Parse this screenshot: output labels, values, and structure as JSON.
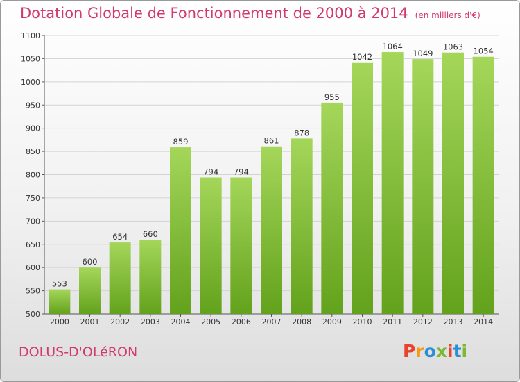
{
  "header": {
    "title": "Dotation Globale de Fonctionnement de 2000 à 2014",
    "unit": "(en milliers d'€)"
  },
  "footer": {
    "commune": "DOLUS-D'OLéRON",
    "logo_text": "Proxiti",
    "logo_colors": [
      "#e8432c",
      "#f39c12",
      "#2b8fd6",
      "#7cb82f",
      "#e8432c",
      "#2b8fd6",
      "#7cb82f"
    ]
  },
  "colors": {
    "bar_light": "#a4d65a",
    "bar_dark": "#63a21c",
    "grid": "#d3d3d3",
    "accent": "#d2396e"
  },
  "chart_data": {
    "type": "bar",
    "title": "Dotation Globale de Fonctionnement de 2000 à 2014",
    "subtitle": "(en milliers d'€)",
    "xlabel": "",
    "ylabel": "",
    "categories": [
      "2000",
      "2001",
      "2002",
      "2003",
      "2004",
      "2005",
      "2006",
      "2007",
      "2008",
      "2009",
      "2010",
      "2011",
      "2012",
      "2013",
      "2014"
    ],
    "values": [
      553,
      600,
      654,
      660,
      859,
      794,
      794,
      861,
      878,
      955,
      1042,
      1064,
      1049,
      1063,
      1054
    ],
    "ylim": [
      500,
      1100
    ],
    "yticks": [
      500,
      550,
      600,
      650,
      700,
      750,
      800,
      850,
      900,
      950,
      1000,
      1050,
      1100
    ],
    "grid": true,
    "data_labels": true
  }
}
